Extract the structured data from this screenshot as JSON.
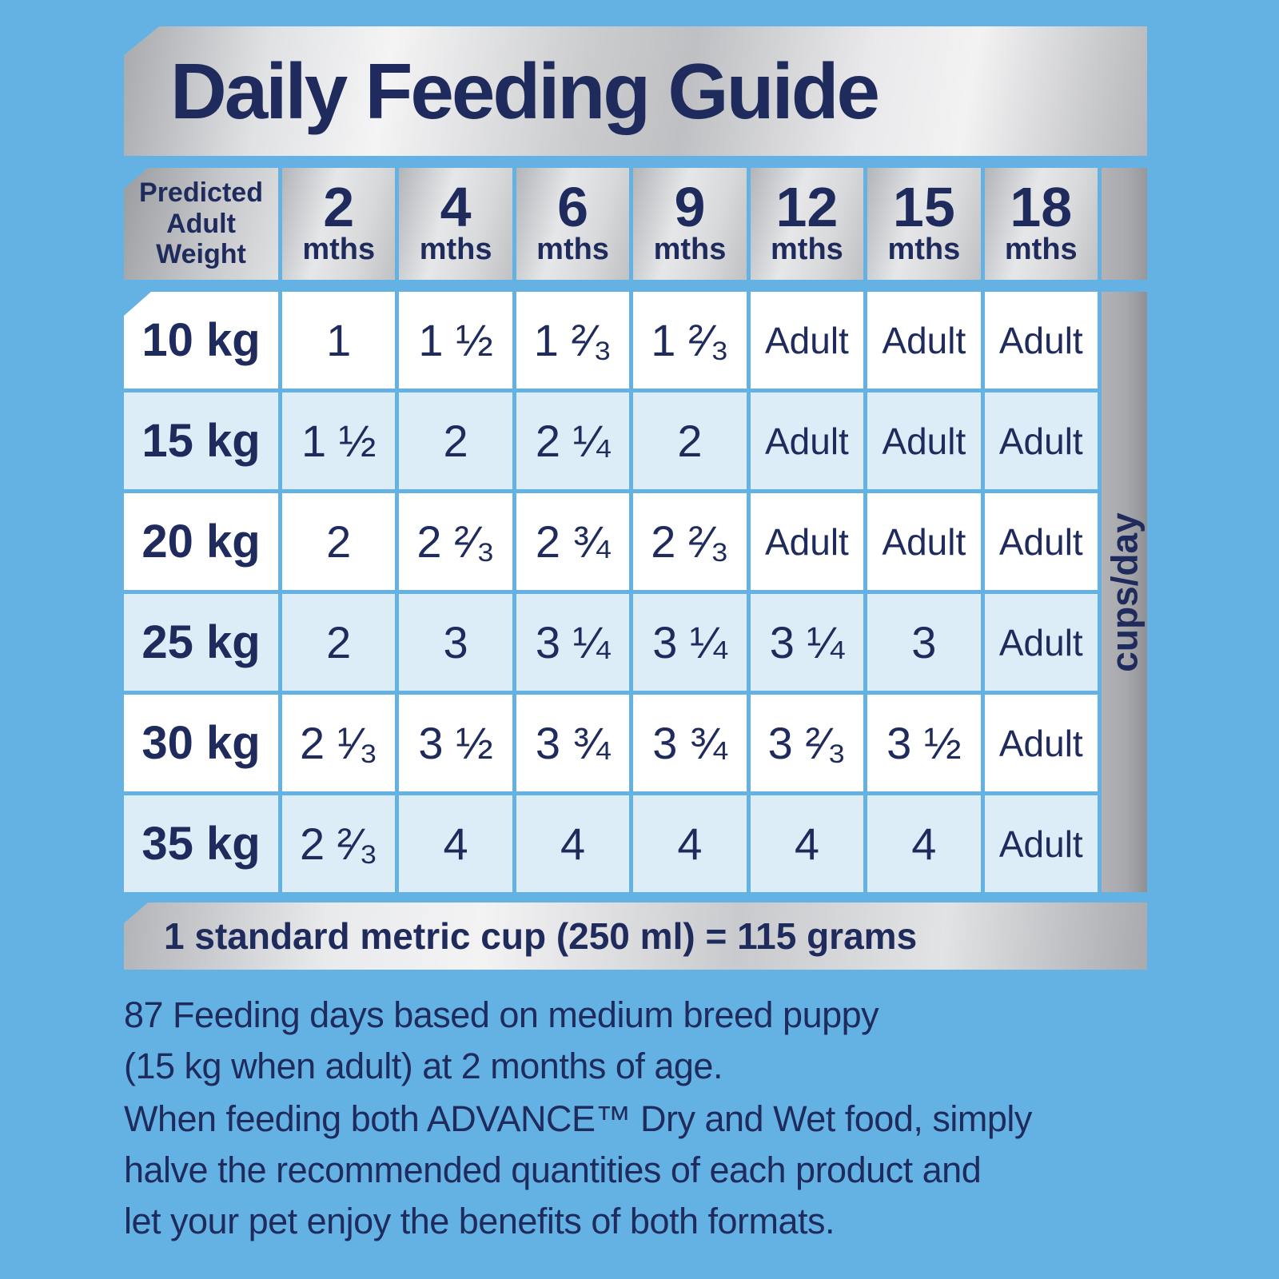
{
  "title": "Daily Feeding Guide",
  "colors": {
    "background": "#64b2e4",
    "text_navy": "#1e2b5c",
    "row_white": "#ffffff",
    "row_pale_blue": "#ddedf8",
    "banner_silver": "#d6d7d9"
  },
  "table": {
    "weight_header_lines": [
      "Predicted",
      "Adult",
      "Weight"
    ],
    "months": [
      {
        "num": "2",
        "unit": "mths"
      },
      {
        "num": "4",
        "unit": "mths"
      },
      {
        "num": "6",
        "unit": "mths"
      },
      {
        "num": "9",
        "unit": "mths"
      },
      {
        "num": "12",
        "unit": "mths"
      },
      {
        "num": "15",
        "unit": "mths"
      },
      {
        "num": "18",
        "unit": "mths"
      }
    ],
    "side_label": "cups/day",
    "rows": [
      {
        "weight": "10 kg",
        "cells": [
          "1",
          "1 ½",
          "1 ²⁄₃",
          "1 ²⁄₃",
          "Adult",
          "Adult",
          "Adult"
        ]
      },
      {
        "weight": "15 kg",
        "cells": [
          "1 ½",
          "2",
          "2 ¼",
          "2",
          "Adult",
          "Adult",
          "Adult"
        ]
      },
      {
        "weight": "20 kg",
        "cells": [
          "2",
          "2 ²⁄₃",
          "2 ¾",
          "2 ²⁄₃",
          "Adult",
          "Adult",
          "Adult"
        ]
      },
      {
        "weight": "25 kg",
        "cells": [
          "2",
          "3",
          "3 ¼",
          "3 ¼",
          "3 ¼",
          "3",
          "Adult"
        ]
      },
      {
        "weight": "30 kg",
        "cells": [
          "2 ¹⁄₃",
          "3 ½",
          "3 ¾",
          "3 ¾",
          "3 ²⁄₃",
          "3 ½",
          "Adult"
        ]
      },
      {
        "weight": "35 kg",
        "cells": [
          "2 ²⁄₃",
          "4",
          "4",
          "4",
          "4",
          "4",
          "Adult"
        ]
      }
    ],
    "footer": "1 standard metric cup (250 ml) = 115 grams"
  },
  "notes": {
    "p1_lines": [
      "87 Feeding days based on medium breed puppy",
      "(15 kg when adult) at 2 months of age."
    ],
    "p2_lines": [
      "When feeding both ADVANCE™ Dry and Wet food, simply",
      "halve the recommended quantities of each product and",
      "let your pet enjoy the benefits of both formats."
    ]
  }
}
